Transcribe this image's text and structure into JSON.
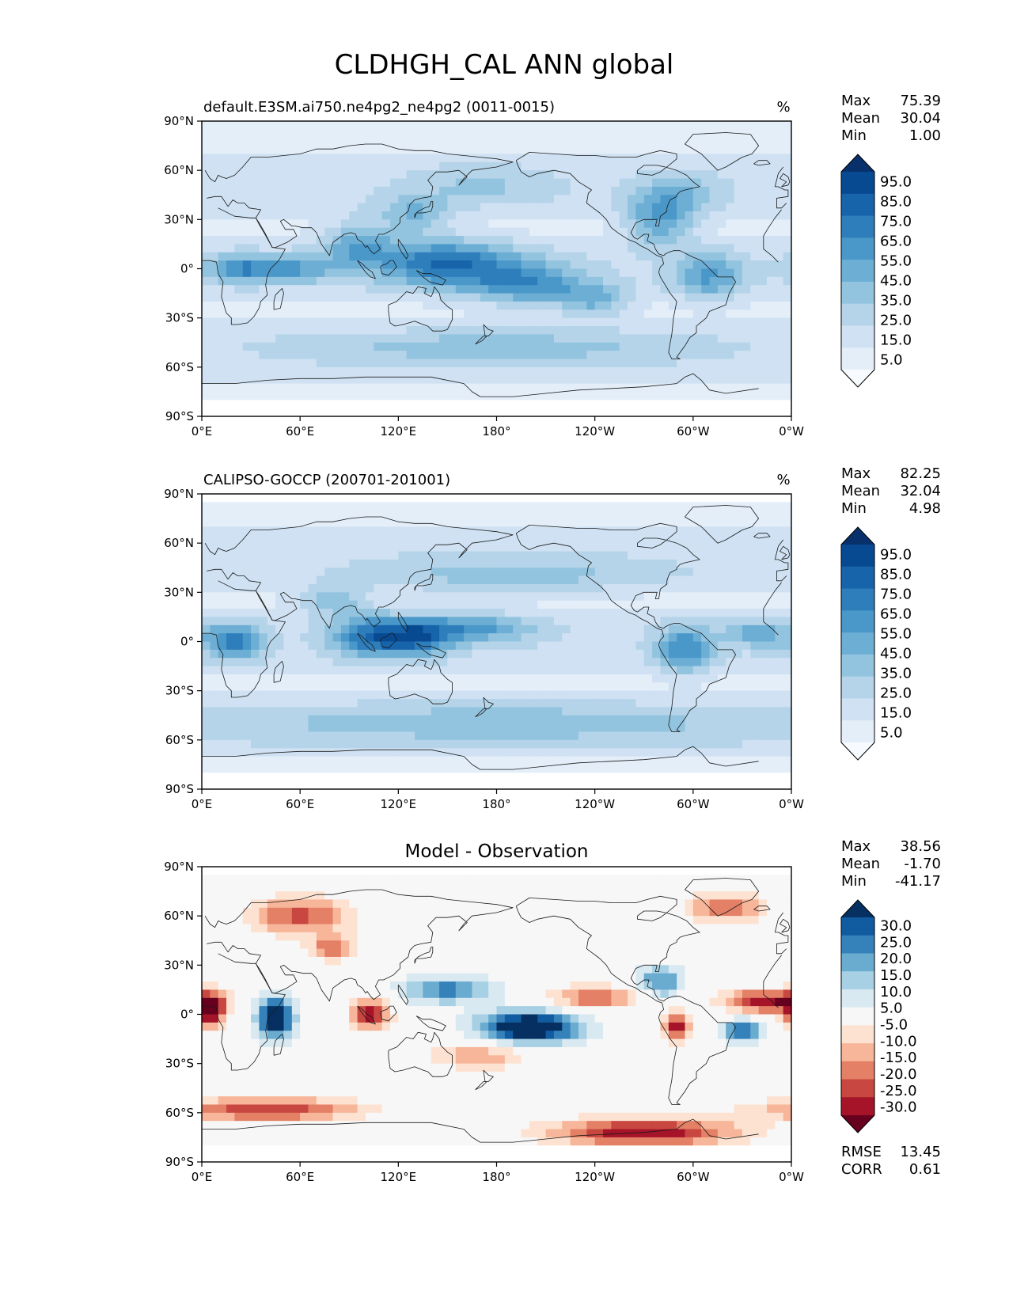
{
  "figure": {
    "title": "CLDHGH_CAL ANN global"
  },
  "axes": {
    "xticks": [
      "0°E",
      "60°E",
      "120°E",
      "180°",
      "120°W",
      "60°W",
      "0°W"
    ],
    "yticks": [
      "90°N",
      "60°N",
      "30°N",
      "0°",
      "30°S",
      "60°S",
      "90°S"
    ]
  },
  "colorbar_levels": {
    "field": [
      "95.0",
      "85.0",
      "75.0",
      "65.0",
      "55.0",
      "45.0",
      "35.0",
      "25.0",
      "15.0",
      "5.0"
    ],
    "diff": [
      "30.0",
      "25.0",
      "20.0",
      "15.0",
      "10.0",
      "5.0",
      "-5.0",
      "-10.0",
      "-15.0",
      "-20.0",
      "-25.0",
      "-30.0"
    ]
  },
  "colors": {
    "field": [
      "#f7fbff",
      "#e3eef9",
      "#cfe1f2",
      "#b5d4e9",
      "#93c4df",
      "#6daed5",
      "#4a98c9",
      "#2e7ebc",
      "#1764ab",
      "#084a91",
      "#08306b"
    ],
    "diff": [
      "#67001f",
      "#a51429",
      "#c94741",
      "#e48066",
      "#f7b699",
      "#fde2d2",
      "#f7f7f7",
      "#d8e9f1",
      "#a7d0e4",
      "#6aabd0",
      "#3581ba",
      "#115ca0",
      "#053061"
    ]
  },
  "chart_data": [
    {
      "type": "heatmap",
      "title": "default.E3SM.ai750.ne4pg2_ne4pg2 (0011-0015)",
      "units": "%",
      "xlim": [
        0,
        360
      ],
      "ylim": [
        -90,
        90
      ],
      "x_ticks": [
        0,
        60,
        120,
        180,
        240,
        300,
        360
      ],
      "y_ticks": [
        90,
        60,
        30,
        0,
        -30,
        -60,
        -90
      ],
      "stats": {
        "max": "75.39",
        "mean": "30.04",
        "min": "1.00"
      },
      "stat_labels": [
        "Max",
        "Mean",
        "Min"
      ],
      "colorbar": [
        95,
        85,
        75,
        65,
        55,
        45,
        35,
        25,
        15,
        5
      ],
      "features": [
        {
          "lon": 150,
          "lat": 3,
          "amp": 55,
          "sx": 30,
          "sy": 10
        },
        {
          "lon": 200,
          "lat": -10,
          "amp": 40,
          "sx": 25,
          "sy": 9
        },
        {
          "lon": 240,
          "lat": -20,
          "amp": 30,
          "sx": 15,
          "sy": 7
        },
        {
          "lon": 25,
          "lat": 0,
          "amp": 45,
          "sx": 16,
          "sy": 6
        },
        {
          "lon": 60,
          "lat": 0,
          "amp": 30,
          "sx": 15,
          "sy": 6
        },
        {
          "lon": 95,
          "lat": 15,
          "amp": 35,
          "sx": 15,
          "sy": 10
        },
        {
          "lon": 130,
          "lat": 32,
          "amp": 30,
          "sx": 15,
          "sy": 8
        },
        {
          "lon": 280,
          "lat": 28,
          "amp": 40,
          "sx": 15,
          "sy": 10
        },
        {
          "lon": 310,
          "lat": -5,
          "amp": 35,
          "sx": 15,
          "sy": 10
        },
        {
          "lon": 290,
          "lat": 45,
          "amp": 25,
          "sx": 18,
          "sy": 8
        },
        {
          "lon": 170,
          "lat": 50,
          "amp": 15,
          "sx": 30,
          "sy": 8
        },
        {
          "lon": 180,
          "lat": -48,
          "amp": 20,
          "sx": 80,
          "sy": 7
        }
      ]
    },
    {
      "type": "heatmap",
      "title": "CALIPSO-GOCCP (200701-201001)",
      "units": "%",
      "xlim": [
        0,
        360
      ],
      "ylim": [
        -90,
        90
      ],
      "x_ticks": [
        0,
        60,
        120,
        180,
        240,
        300,
        360
      ],
      "y_ticks": [
        90,
        60,
        30,
        0,
        -30,
        -60,
        -90
      ],
      "stats": {
        "max": "82.25",
        "mean": "32.04",
        "min": "4.98"
      },
      "stat_labels": [
        "Max",
        "Mean",
        "Min"
      ],
      "colorbar": [
        95,
        85,
        75,
        65,
        55,
        45,
        35,
        25,
        15,
        5
      ],
      "features": [
        {
          "lon": 20,
          "lat": 0,
          "amp": 50,
          "sx": 12,
          "sy": 8
        },
        {
          "lon": 105,
          "lat": 3,
          "amp": 55,
          "sx": 18,
          "sy": 9
        },
        {
          "lon": 135,
          "lat": 3,
          "amp": 45,
          "sx": 15,
          "sy": 8
        },
        {
          "lon": 170,
          "lat": 8,
          "amp": 35,
          "sx": 25,
          "sy": 6
        },
        {
          "lon": 295,
          "lat": -5,
          "amp": 45,
          "sx": 12,
          "sy": 10
        },
        {
          "lon": 340,
          "lat": 5,
          "amp": 30,
          "sx": 15,
          "sy": 6
        },
        {
          "lon": 80,
          "lat": 25,
          "amp": 30,
          "sx": 15,
          "sy": 6
        },
        {
          "lon": 190,
          "lat": 40,
          "amp": 20,
          "sx": 60,
          "sy": 8
        },
        {
          "lon": 180,
          "lat": -50,
          "amp": 22,
          "sx": 120,
          "sy": 8
        }
      ]
    },
    {
      "type": "heatmap",
      "title": "Model - Observation",
      "xlim": [
        0,
        360
      ],
      "ylim": [
        -90,
        90
      ],
      "x_ticks": [
        0,
        60,
        120,
        180,
        240,
        300,
        360
      ],
      "y_ticks": [
        90,
        60,
        30,
        0,
        -30,
        -60,
        -90
      ],
      "stats": {
        "max": "38.56",
        "mean": "-1.70",
        "min": "-41.17"
      },
      "stat_labels": [
        "Max",
        "Mean",
        "Min"
      ],
      "metrics": {
        "rmse": "13.45",
        "corr": "0.61"
      },
      "metric_labels": [
        "RMSE",
        "CORR"
      ],
      "colorbar": [
        30,
        25,
        20,
        15,
        10,
        5,
        -5,
        -10,
        -15,
        -20,
        -25,
        -30
      ],
      "features": [
        {
          "lon": 200,
          "lat": -8,
          "amp": 42,
          "sx": 22,
          "sy": 7
        },
        {
          "lon": 150,
          "lat": 15,
          "amp": 22,
          "sx": 20,
          "sy": 6
        },
        {
          "lon": 45,
          "lat": -2,
          "amp": 38,
          "sx": 8,
          "sy": 9
        },
        {
          "lon": 280,
          "lat": 20,
          "amp": 22,
          "sx": 10,
          "sy": 7
        },
        {
          "lon": 330,
          "lat": -10,
          "amp": 28,
          "sx": 8,
          "sy": 5
        },
        {
          "lon": 5,
          "lat": 2,
          "amp": -35,
          "sx": 6,
          "sy": 7
        },
        {
          "lon": 103,
          "lat": 0,
          "amp": -30,
          "sx": 8,
          "sy": 6
        },
        {
          "lon": 345,
          "lat": 8,
          "amp": -30,
          "sx": 18,
          "sy": 5
        },
        {
          "lon": 290,
          "lat": -8,
          "amp": -28,
          "sx": 6,
          "sy": 6
        },
        {
          "lon": 240,
          "lat": 10,
          "amp": -20,
          "sx": 20,
          "sy": 5
        },
        {
          "lon": 60,
          "lat": 60,
          "amp": -22,
          "sx": 22,
          "sy": 8
        },
        {
          "lon": 80,
          "lat": 40,
          "amp": -20,
          "sx": 10,
          "sy": 5
        },
        {
          "lon": 320,
          "lat": 65,
          "amp": -22,
          "sx": 15,
          "sy": 6
        },
        {
          "lon": 270,
          "lat": -72,
          "amp": -30,
          "sx": 40,
          "sy": 6
        },
        {
          "lon": 40,
          "lat": -58,
          "amp": -25,
          "sx": 40,
          "sy": 5
        },
        {
          "lon": 170,
          "lat": -25,
          "amp": -15,
          "sx": 20,
          "sy": 6
        }
      ]
    }
  ]
}
